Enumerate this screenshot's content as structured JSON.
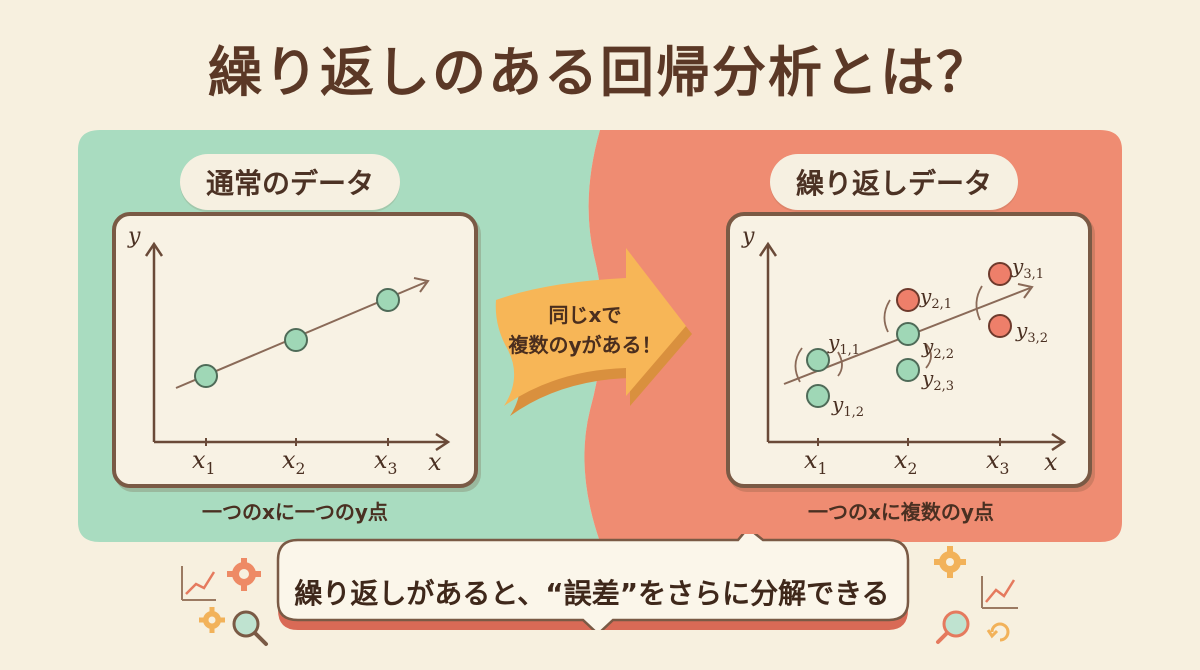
{
  "title": "繰り返しのある回帰分析とは？",
  "left": {
    "header": "通常のデータ",
    "caption": "一つのxに一つのy点",
    "axis_y": "y",
    "axis_x": "x",
    "ticks": [
      "1",
      "2",
      "3"
    ]
  },
  "right": {
    "header": "繰り返しデータ",
    "caption": "一つのxに複数のy点",
    "axis_y": "y",
    "axis_x": "x",
    "ticks": [
      "1",
      "2",
      "3"
    ],
    "point_labels": [
      "1,1",
      "1,2",
      "2,1",
      "2,2",
      "2,3",
      "3,1",
      "3,2"
    ]
  },
  "arrow": {
    "line1": "同じxで",
    "line2": "複数のyがある！"
  },
  "bubble": {
    "text": "繰り返しがあると、“誤差”をさらに分解できる"
  },
  "colors": {
    "background": "#f7f0df",
    "left_panel": "#a9dcc0",
    "right_panel": "#ef8c72",
    "point_green": "#9fd7b6",
    "point_red": "#ee7f6a",
    "arrow_orange": "#f7b657",
    "text_brown": "#5b3826"
  },
  "icons": [
    "gear-icon",
    "chart-icon",
    "magnifier-icon",
    "refresh-icon"
  ]
}
